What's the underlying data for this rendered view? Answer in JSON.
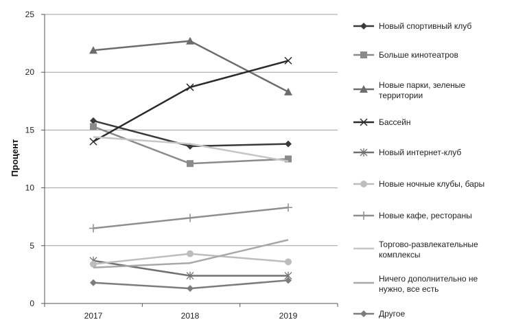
{
  "chart_data": {
    "type": "line",
    "title": "",
    "xlabel": "",
    "ylabel": "Процент",
    "categories": [
      "2017",
      "2018",
      "2019"
    ],
    "ylim": [
      0,
      25
    ],
    "yticks": [
      0,
      5,
      10,
      15,
      20,
      25
    ],
    "grid": "horizontal",
    "legend_position": "right",
    "series": [
      {
        "name": "Новый спортивный клуб",
        "values": [
          15.8,
          13.6,
          13.8
        ],
        "color": "#3a3a3a",
        "marker": "diamond"
      },
      {
        "name": "Больше кинотеатров",
        "values": [
          15.3,
          12.1,
          12.5
        ],
        "color": "#8a8a8a",
        "marker": "square"
      },
      {
        "name": "Новые парки, зеленые территории",
        "values": [
          21.9,
          22.7,
          18.3
        ],
        "color": "#6c6c6c",
        "marker": "triangle"
      },
      {
        "name": "Бассейн",
        "values": [
          14.0,
          18.7,
          21.0
        ],
        "color": "#2a2a2a",
        "marker": "x"
      },
      {
        "name": "Новый интернет-клуб",
        "values": [
          3.7,
          2.4,
          2.4
        ],
        "color": "#707070",
        "marker": "star"
      },
      {
        "name": "Новые ночные клубы, бары",
        "values": [
          3.4,
          4.3,
          3.6
        ],
        "color": "#bdbdbd",
        "marker": "circle"
      },
      {
        "name": "Новые кафе, рестораны",
        "values": [
          6.5,
          7.4,
          8.3
        ],
        "color": "#8e8e8e",
        "marker": "plus"
      },
      {
        "name": "Торгово-развлекательные комплексы",
        "values": [
          14.4,
          13.8,
          12.3
        ],
        "color": "#c6c6c6",
        "marker": "none"
      },
      {
        "name": "Ничего дополнительно не нужно, все есть",
        "values": [
          3.1,
          3.5,
          5.5
        ],
        "color": "#a8a8a8",
        "marker": "none"
      },
      {
        "name": "Другое",
        "values": [
          1.8,
          1.3,
          2.0
        ],
        "color": "#7c7c7c",
        "marker": "diamond"
      }
    ]
  }
}
